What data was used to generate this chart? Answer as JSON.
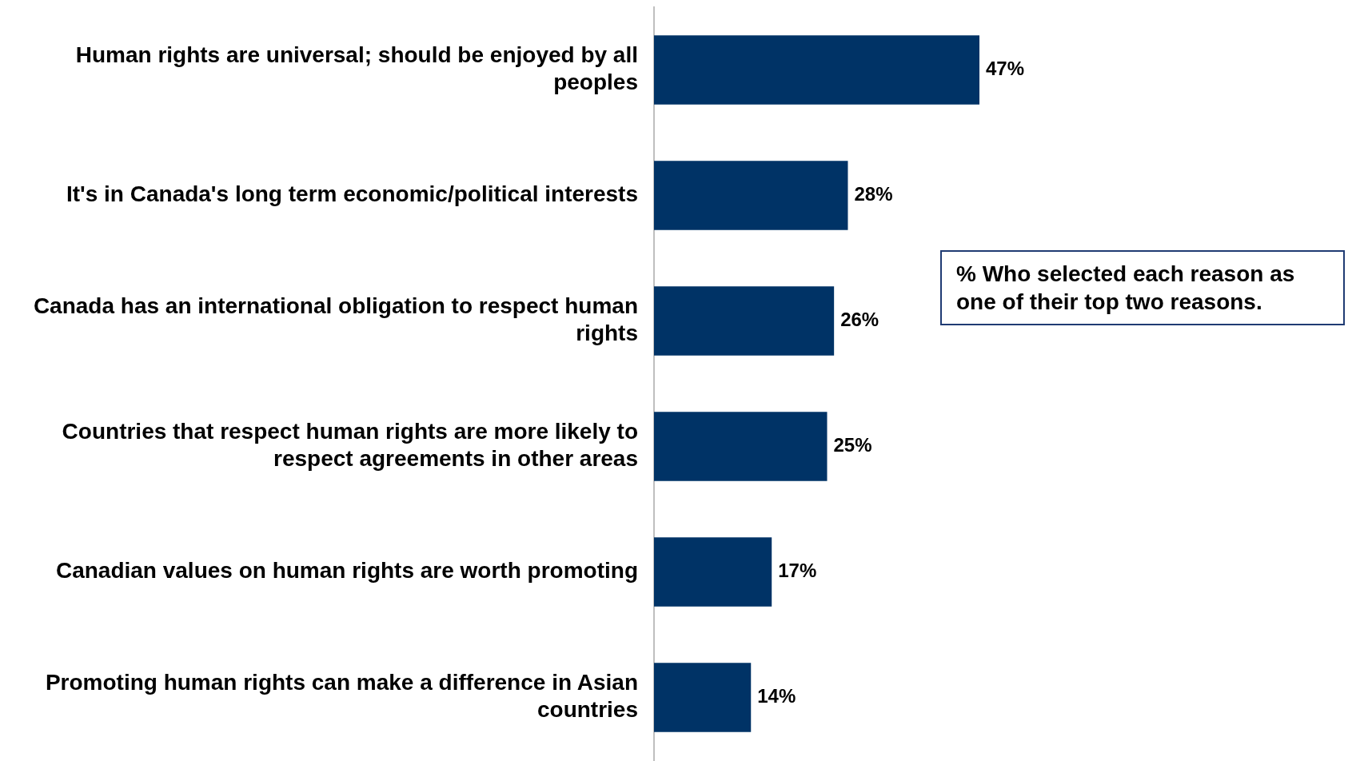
{
  "chart_data": {
    "type": "bar",
    "orientation": "horizontal",
    "categories": [
      "Human rights are universal; should be enjoyed by all peoples",
      "It's in Canada's long term economic/political interests",
      "Canada has an international obligation to respect human rights",
      "Countries that respect human rights are more likely to respect agreements in other areas",
      "Canadian values on human rights are worth promoting",
      "Promoting human rights can make a difference in Asian countries"
    ],
    "values": [
      47,
      28,
      26,
      25,
      17,
      14
    ],
    "value_labels": [
      "47%",
      "28%",
      "26%",
      "25%",
      "17%",
      "14%"
    ],
    "color": "#003366",
    "tick_labels": "y",
    "legend": false,
    "annotations": [
      "% Who selected each reason as one of their top two reasons."
    ]
  }
}
